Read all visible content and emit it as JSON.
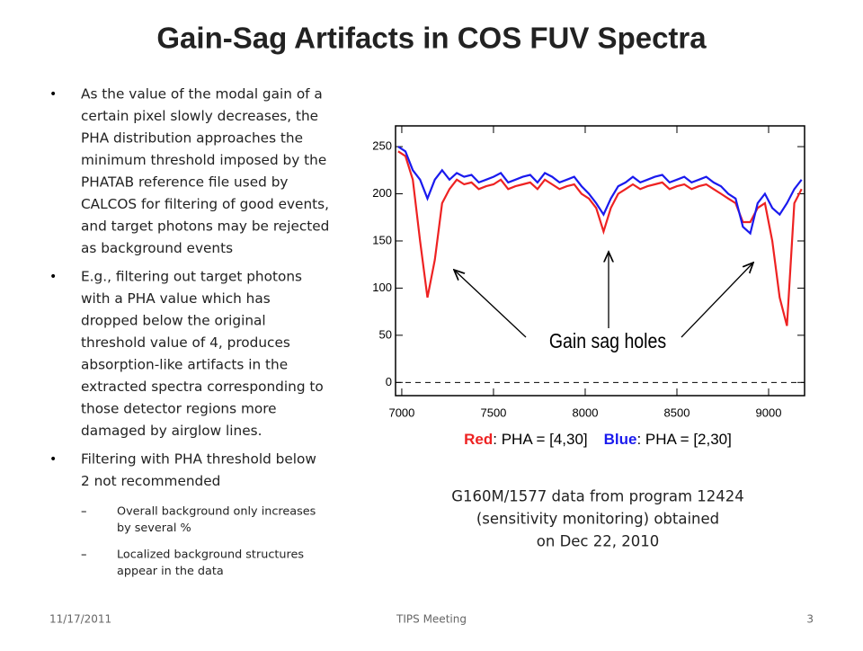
{
  "slide": {
    "title": "Gain-Sag Artifacts in COS FUV Spectra",
    "bullets": [
      {
        "lines": [
          "As the value of the modal gain of a",
          "certain pixel slowly decreases, the",
          "PHA distribution approaches the",
          "minimum threshold imposed by the",
          "PHATAB reference file used by",
          "CALCOS for filtering of good events,",
          "and target photons may be rejected",
          "as background events"
        ]
      },
      {
        "lines": [
          "E.g., filtering out target photons",
          "with a PHA value which has",
          "dropped below the original",
          "threshold value of 4, produces",
          "absorption-like artifacts in the",
          "extracted spectra corresponding to",
          "those detector regions more",
          "damaged by airglow lines."
        ]
      },
      {
        "lines": [
          "Filtering with PHA threshold below",
          "2 not recommended"
        ],
        "sub": [
          {
            "lines": [
              "Overall background only increases",
              "by several %"
            ]
          },
          {
            "lines": [
              "Localized background structures",
              "appear in the data"
            ]
          }
        ]
      }
    ],
    "caption": [
      "G160M/1577 data from program 12424",
      "(sensitivity monitoring) obtained",
      "on Dec 22, 2010"
    ],
    "footer": {
      "date": "11/17/2011",
      "center": "TIPS Meeting",
      "page": "3"
    }
  },
  "chart_data": {
    "type": "line",
    "annotation": "Gain sag holes",
    "x": [
      6980,
      7020,
      7060,
      7100,
      7140,
      7180,
      7220,
      7260,
      7300,
      7340,
      7380,
      7420,
      7460,
      7500,
      7540,
      7580,
      7620,
      7660,
      7700,
      7740,
      7780,
      7820,
      7860,
      7900,
      7940,
      7980,
      8020,
      8060,
      8100,
      8140,
      8180,
      8220,
      8260,
      8300,
      8340,
      8380,
      8420,
      8460,
      8500,
      8540,
      8580,
      8620,
      8660,
      8700,
      8740,
      8780,
      8820,
      8860,
      8900,
      8940,
      8980,
      9020,
      9060,
      9100,
      9140,
      9180
    ],
    "series": [
      {
        "name": "Red",
        "label": ": PHA = [4,30]",
        "color": "#ee2222",
        "values": [
          245,
          240,
          215,
          150,
          90,
          130,
          190,
          205,
          215,
          210,
          212,
          205,
          208,
          210,
          215,
          205,
          208,
          210,
          212,
          205,
          215,
          210,
          205,
          208,
          210,
          200,
          195,
          185,
          160,
          185,
          200,
          205,
          210,
          205,
          208,
          210,
          212,
          205,
          208,
          210,
          205,
          208,
          210,
          205,
          200,
          195,
          190,
          170,
          170,
          185,
          190,
          150,
          90,
          60,
          190,
          205
        ]
      },
      {
        "name": "Blue",
        "label": ": PHA = [2,30]",
        "color": "#1a1aee",
        "values": [
          250,
          245,
          225,
          215,
          195,
          215,
          225,
          215,
          222,
          218,
          220,
          212,
          215,
          218,
          222,
          212,
          215,
          218,
          220,
          212,
          222,
          218,
          212,
          215,
          218,
          208,
          200,
          190,
          178,
          195,
          208,
          212,
          218,
          212,
          215,
          218,
          220,
          212,
          215,
          218,
          212,
          215,
          218,
          212,
          208,
          200,
          195,
          165,
          158,
          190,
          200,
          185,
          178,
          190,
          205,
          215
        ]
      }
    ],
    "xlim": [
      6966,
      9196
    ],
    "ylim": [
      -14,
      272
    ],
    "xticks": [
      7000,
      7500,
      8000,
      8500,
      9000
    ],
    "yticks": [
      0,
      50,
      100,
      150,
      200,
      250
    ]
  }
}
